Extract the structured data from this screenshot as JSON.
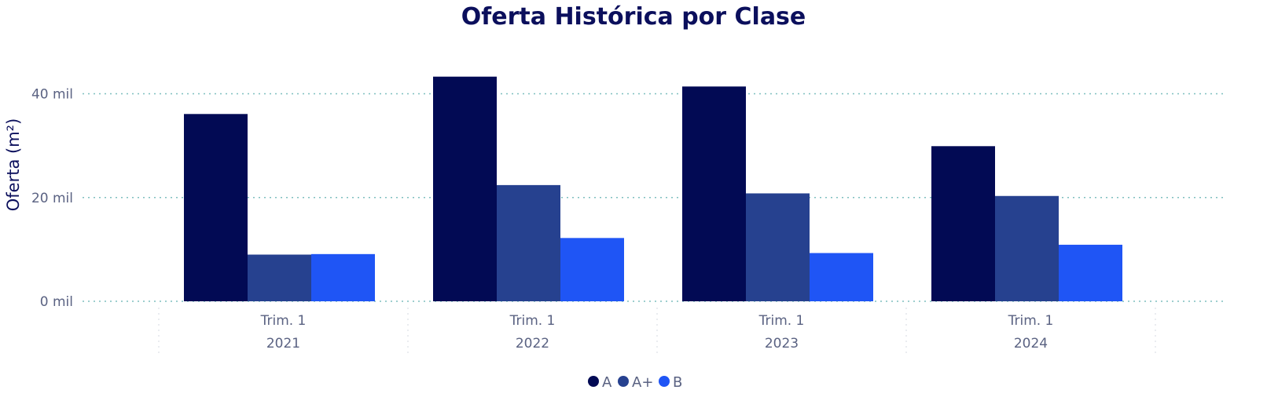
{
  "chart_data": {
    "type": "bar",
    "title": "Oferta Histórica por Clase",
    "ylabel": "Oferta (m²)",
    "xlabel": "",
    "categories": [
      {
        "quarter": "Trim. 1",
        "year": "2021"
      },
      {
        "quarter": "Trim. 1",
        "year": "2022"
      },
      {
        "quarter": "Trim. 1",
        "year": "2023"
      },
      {
        "quarter": "Trim. 1",
        "year": "2024"
      }
    ],
    "series": [
      {
        "name": "A",
        "color": "#020a54",
        "values": [
          36100,
          43300,
          41400,
          29900
        ]
      },
      {
        "name": "A+",
        "color": "#26418f",
        "values": [
          9000,
          22400,
          20800,
          20300
        ]
      },
      {
        "name": "B",
        "color": "#1f55f5",
        "values": [
          9100,
          12200,
          9300,
          10900
        ]
      }
    ],
    "ylim": [
      0,
      49000
    ],
    "yticks": [
      {
        "value": 0,
        "label": "0 mil"
      },
      {
        "value": 20000,
        "label": "20 mil"
      },
      {
        "value": 40000,
        "label": "40 mil"
      }
    ],
    "grid": true,
    "legend_position": "bottom-center"
  }
}
